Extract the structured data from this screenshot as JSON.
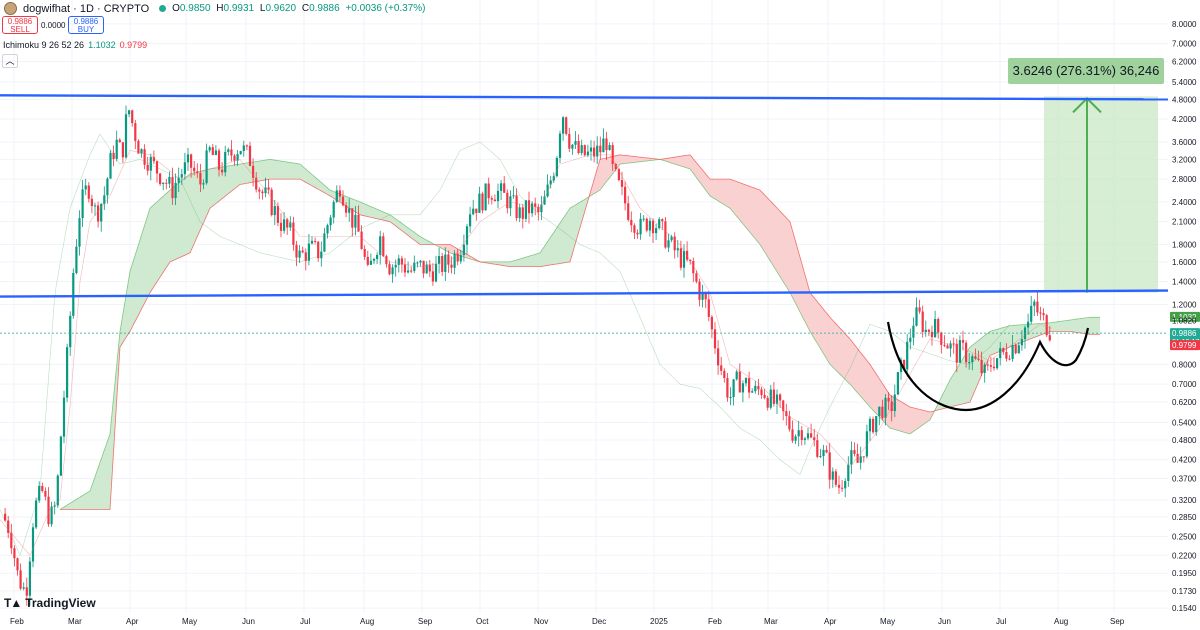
{
  "header": {
    "symbol": "dogwifhat · 1D · CRYPTO",
    "ohlc": {
      "open_label": "O",
      "open": "0.9850",
      "high_label": "H",
      "high": "0.9931",
      "low_label": "L",
      "low": "0.9620",
      "close_label": "C",
      "close": "0.9886",
      "change": "+0.0036 (+0.37%)"
    },
    "sell_price": "0.9886",
    "sell_label": "SELL",
    "spread": "0.0000",
    "buy_price": "0.9886",
    "buy_label": "BUY",
    "indicator": {
      "name": "Ichimoku 9 26 52 26",
      "value1": "1.1032",
      "value2": "0.9799"
    },
    "collapse_icon": "chevron-up-icon"
  },
  "logo": {
    "text": "TradingView",
    "icon": "tradingview-logo-icon"
  },
  "measurement": {
    "label": "3.6246 (276.31%) 36,246",
    "from_price": 1.3,
    "to_price": 4.9
  },
  "price_badges": {
    "span_a": "1.1032",
    "overlap_text": "1.0820",
    "last": "0.9886",
    "countdown": "21:19:17",
    "span_b": "0.9799"
  },
  "colors": {
    "up": "#089981",
    "down": "#f23645",
    "trendline": "#2962ff",
    "cloud_bull": "#c8e6c9",
    "cloud_bear": "#f8c9c9",
    "measure_fill": "#c9e8c6",
    "measure_arrow": "#4caf50",
    "pattern_curve": "#000000"
  },
  "chart_data": {
    "type": "candlestick",
    "y_scale": "log",
    "ylim": [
      0.15,
      9.4
    ],
    "y_ticks": [
      "8.0000",
      "7.0000",
      "6.2000",
      "5.4000",
      "4.8000",
      "4.2000",
      "3.6000",
      "3.2000",
      "2.8000",
      "2.4000",
      "2.1000",
      "1.8000",
      "1.6000",
      "1.4000",
      "1.2000",
      "0.8000",
      "0.7000",
      "0.6200",
      "0.5400",
      "0.4800",
      "0.4200",
      "0.3700",
      "0.3200",
      "0.2850",
      "0.2500",
      "0.2200",
      "0.1950",
      "0.1730",
      "0.1540"
    ],
    "x_ticks": [
      "Feb",
      "Mar",
      "Apr",
      "May",
      "Jun",
      "Jul",
      "Aug",
      "Sep",
      "Oct",
      "Nov",
      "Dec",
      "2025",
      "Feb",
      "Mar",
      "Apr",
      "May",
      "Jun",
      "Jul",
      "Aug",
      "Sep"
    ],
    "resistance_level": 4.9,
    "support_level": 1.3,
    "grid": true,
    "legend": "top-left",
    "price_path": [
      [
        0,
        0.3
      ],
      [
        10,
        0.26
      ],
      [
        18,
        0.19
      ],
      [
        26,
        0.17
      ],
      [
        34,
        0.3
      ],
      [
        42,
        0.34
      ],
      [
        50,
        0.28
      ],
      [
        56,
        0.31
      ],
      [
        62,
        0.55
      ],
      [
        68,
        0.9
      ],
      [
        74,
        1.6
      ],
      [
        80,
        2.3
      ],
      [
        88,
        2.7
      ],
      [
        96,
        2.2
      ],
      [
        104,
        2.5
      ],
      [
        110,
        3.1
      ],
      [
        116,
        3.6
      ],
      [
        122,
        3.3
      ],
      [
        128,
        4.6
      ],
      [
        134,
        3.9
      ],
      [
        140,
        3.4
      ],
      [
        148,
        3.2
      ],
      [
        156,
        3.0
      ],
      [
        164,
        2.8
      ],
      [
        172,
        2.6
      ],
      [
        180,
        2.9
      ],
      [
        190,
        3.1
      ],
      [
        200,
        2.7
      ],
      [
        210,
        3.4
      ],
      [
        220,
        3.0
      ],
      [
        230,
        3.3
      ],
      [
        240,
        3.5
      ],
      [
        250,
        3.2
      ],
      [
        260,
        2.6
      ],
      [
        270,
        2.4
      ],
      [
        280,
        2.1
      ],
      [
        290,
        1.95
      ],
      [
        300,
        1.65
      ],
      [
        310,
        1.75
      ],
      [
        320,
        1.7
      ],
      [
        330,
        2.2
      ],
      [
        340,
        2.7
      ],
      [
        350,
        2.2
      ],
      [
        360,
        1.9
      ],
      [
        368,
        1.45
      ],
      [
        374,
        1.7
      ],
      [
        380,
        1.9
      ],
      [
        390,
        1.55
      ],
      [
        400,
        1.6
      ],
      [
        410,
        1.5
      ],
      [
        420,
        1.55
      ],
      [
        430,
        1.5
      ],
      [
        440,
        1.55
      ],
      [
        450,
        1.6
      ],
      [
        460,
        1.75
      ],
      [
        470,
        2.3
      ],
      [
        480,
        2.4
      ],
      [
        490,
        2.6
      ],
      [
        500,
        2.55
      ],
      [
        510,
        2.4
      ],
      [
        520,
        2.2
      ],
      [
        530,
        2.3
      ],
      [
        540,
        2.2
      ],
      [
        548,
        2.6
      ],
      [
        556,
        3.2
      ],
      [
        562,
        4.5
      ],
      [
        570,
        3.6
      ],
      [
        580,
        3.3
      ],
      [
        590,
        3.3
      ],
      [
        600,
        3.4
      ],
      [
        606,
        3.7
      ],
      [
        612,
        3.0
      ],
      [
        620,
        2.6
      ],
      [
        630,
        2.2
      ],
      [
        640,
        2.0
      ],
      [
        650,
        2.15
      ],
      [
        660,
        2.0
      ],
      [
        670,
        1.8
      ],
      [
        680,
        1.65
      ],
      [
        690,
        1.55
      ],
      [
        700,
        1.3
      ],
      [
        706,
        1.2
      ],
      [
        712,
        1.0
      ],
      [
        718,
        0.85
      ],
      [
        724,
        0.72
      ],
      [
        730,
        0.64
      ],
      [
        738,
        0.72
      ],
      [
        746,
        0.7
      ],
      [
        754,
        0.66
      ],
      [
        762,
        0.68
      ],
      [
        770,
        0.63
      ],
      [
        778,
        0.6
      ],
      [
        786,
        0.55
      ],
      [
        794,
        0.5
      ],
      [
        802,
        0.52
      ],
      [
        810,
        0.48
      ],
      [
        818,
        0.46
      ],
      [
        826,
        0.42
      ],
      [
        834,
        0.36
      ],
      [
        840,
        0.35
      ],
      [
        846,
        0.4
      ],
      [
        852,
        0.42
      ],
      [
        858,
        0.41
      ],
      [
        866,
        0.48
      ],
      [
        874,
        0.55
      ],
      [
        882,
        0.6
      ],
      [
        890,
        0.58
      ],
      [
        898,
        0.72
      ],
      [
        906,
        0.86
      ],
      [
        914,
        1.1
      ],
      [
        920,
        1.1
      ],
      [
        926,
        1.0
      ],
      [
        932,
        1.04
      ],
      [
        938,
        1.0
      ],
      [
        944,
        0.95
      ],
      [
        950,
        0.9
      ],
      [
        956,
        0.86
      ],
      [
        962,
        0.88
      ],
      [
        968,
        0.85
      ],
      [
        974,
        0.82
      ],
      [
        980,
        0.78
      ],
      [
        986,
        0.74
      ],
      [
        992,
        0.82
      ],
      [
        998,
        0.84
      ],
      [
        1004,
        0.86
      ],
      [
        1010,
        0.9
      ],
      [
        1016,
        0.92
      ],
      [
        1022,
        1.0
      ],
      [
        1028,
        1.05
      ],
      [
        1034,
        1.2
      ],
      [
        1040,
        1.1
      ],
      [
        1046,
        1.05
      ],
      [
        1052,
        0.99
      ]
    ],
    "tenkan_path": [
      [
        0,
        0.28
      ],
      [
        30,
        0.22
      ],
      [
        50,
        0.3
      ],
      [
        60,
        0.32
      ],
      [
        70,
        0.6
      ],
      [
        80,
        1.4
      ],
      [
        90,
        2.1
      ],
      [
        110,
        2.5
      ],
      [
        130,
        3.4
      ],
      [
        150,
        3.3
      ],
      [
        180,
        2.8
      ],
      [
        210,
        3.0
      ],
      [
        240,
        3.2
      ],
      [
        270,
        2.5
      ],
      [
        300,
        1.9
      ],
      [
        330,
        1.9
      ],
      [
        360,
        1.9
      ],
      [
        390,
        1.6
      ],
      [
        420,
        1.55
      ],
      [
        450,
        1.6
      ],
      [
        480,
        2.1
      ],
      [
        510,
        2.4
      ],
      [
        540,
        2.3
      ],
      [
        560,
        3.1
      ],
      [
        590,
        3.3
      ],
      [
        610,
        3.3
      ],
      [
        640,
        2.3
      ],
      [
        680,
        1.8
      ],
      [
        710,
        1.3
      ],
      [
        730,
        0.8
      ],
      [
        760,
        0.7
      ],
      [
        790,
        0.56
      ],
      [
        820,
        0.5
      ],
      [
        850,
        0.4
      ],
      [
        880,
        0.52
      ],
      [
        910,
        0.75
      ],
      [
        930,
        0.95
      ],
      [
        960,
        0.9
      ],
      [
        990,
        0.82
      ],
      [
        1020,
        0.95
      ],
      [
        1040,
        1.05
      ],
      [
        1052,
        1.02
      ]
    ],
    "span_a_path": [
      [
        60,
        0.3
      ],
      [
        90,
        0.34
      ],
      [
        110,
        0.5
      ],
      [
        120,
        1.0
      ],
      [
        130,
        1.5
      ],
      [
        150,
        2.3
      ],
      [
        170,
        2.6
      ],
      [
        190,
        2.9
      ],
      [
        210,
        3.0
      ],
      [
        240,
        3.1
      ],
      [
        270,
        3.2
      ],
      [
        300,
        3.1
      ],
      [
        330,
        2.6
      ],
      [
        360,
        2.4
      ],
      [
        390,
        2.2
      ],
      [
        420,
        1.9
      ],
      [
        450,
        1.7
      ],
      [
        480,
        1.6
      ],
      [
        510,
        1.6
      ],
      [
        540,
        1.7
      ],
      [
        570,
        2.3
      ],
      [
        600,
        2.6
      ],
      [
        620,
        3.1
      ],
      [
        660,
        3.2
      ],
      [
        690,
        3.0
      ],
      [
        710,
        2.5
      ],
      [
        730,
        2.3
      ],
      [
        760,
        1.8
      ],
      [
        790,
        1.3
      ],
      [
        810,
        1.0
      ],
      [
        830,
        0.8
      ],
      [
        850,
        0.7
      ],
      [
        870,
        0.6
      ],
      [
        890,
        0.52
      ],
      [
        910,
        0.5
      ],
      [
        930,
        0.55
      ],
      [
        950,
        0.72
      ],
      [
        970,
        0.9
      ],
      [
        990,
        1.0
      ],
      [
        1010,
        1.04
      ],
      [
        1030,
        1.05
      ],
      [
        1050,
        1.06
      ],
      [
        1070,
        1.08
      ],
      [
        1090,
        1.1
      ],
      [
        1100,
        1.1
      ]
    ],
    "span_b_path": [
      [
        60,
        0.3
      ],
      [
        90,
        0.3
      ],
      [
        110,
        0.3
      ],
      [
        120,
        0.9
      ],
      [
        130,
        1.0
      ],
      [
        150,
        1.3
      ],
      [
        170,
        1.6
      ],
      [
        190,
        1.7
      ],
      [
        210,
        2.3
      ],
      [
        240,
        2.7
      ],
      [
        270,
        2.8
      ],
      [
        300,
        2.8
      ],
      [
        330,
        2.5
      ],
      [
        360,
        2.2
      ],
      [
        390,
        2.1
      ],
      [
        420,
        1.8
      ],
      [
        450,
        1.8
      ],
      [
        480,
        1.6
      ],
      [
        510,
        1.55
      ],
      [
        540,
        1.55
      ],
      [
        570,
        1.6
      ],
      [
        600,
        3.2
      ],
      [
        620,
        3.3
      ],
      [
        660,
        3.2
      ],
      [
        690,
        3.3
      ],
      [
        710,
        2.8
      ],
      [
        730,
        2.8
      ],
      [
        760,
        2.6
      ],
      [
        790,
        2.1
      ],
      [
        810,
        1.3
      ],
      [
        830,
        1.1
      ],
      [
        850,
        0.95
      ],
      [
        870,
        0.8
      ],
      [
        890,
        0.65
      ],
      [
        910,
        0.6
      ],
      [
        930,
        0.58
      ],
      [
        950,
        0.6
      ],
      [
        970,
        0.62
      ],
      [
        990,
        0.85
      ],
      [
        1010,
        0.9
      ],
      [
        1030,
        0.95
      ],
      [
        1050,
        1.0
      ],
      [
        1070,
        1.0
      ],
      [
        1090,
        0.98
      ],
      [
        1100,
        0.98
      ]
    ],
    "lagging_path": [
      [
        0,
        0.3
      ],
      [
        20,
        0.22
      ],
      [
        40,
        0.34
      ],
      [
        55,
        1.3
      ],
      [
        70,
        2.3
      ],
      [
        90,
        3.3
      ],
      [
        100,
        3.8
      ],
      [
        120,
        3.1
      ],
      [
        140,
        3.2
      ],
      [
        160,
        3.0
      ],
      [
        180,
        2.8
      ],
      [
        200,
        2.1
      ],
      [
        220,
        1.9
      ],
      [
        240,
        1.8
      ],
      [
        260,
        1.7
      ],
      [
        280,
        1.65
      ],
      [
        300,
        1.6
      ],
      [
        330,
        1.7
      ],
      [
        360,
        2.0
      ],
      [
        390,
        2.2
      ],
      [
        420,
        2.2
      ],
      [
        440,
        2.6
      ],
      [
        460,
        3.4
      ],
      [
        480,
        3.6
      ],
      [
        500,
        3.2
      ],
      [
        520,
        2.5
      ],
      [
        540,
        2.2
      ],
      [
        560,
        2.0
      ],
      [
        580,
        1.8
      ],
      [
        600,
        1.7
      ],
      [
        620,
        1.5
      ],
      [
        640,
        1.1
      ],
      [
        660,
        0.8
      ],
      [
        680,
        0.7
      ],
      [
        700,
        0.68
      ],
      [
        720,
        0.6
      ],
      [
        740,
        0.52
      ],
      [
        760,
        0.48
      ],
      [
        780,
        0.42
      ],
      [
        800,
        0.38
      ],
      [
        810,
        0.45
      ],
      [
        830,
        0.6
      ],
      [
        850,
        0.78
      ],
      [
        870,
        1.05
      ],
      [
        890,
        1.0
      ],
      [
        910,
        0.9
      ],
      [
        930,
        0.86
      ],
      [
        950,
        0.82
      ],
      [
        970,
        0.8
      ],
      [
        990,
        0.9
      ],
      [
        1010,
        1.05
      ]
    ]
  }
}
